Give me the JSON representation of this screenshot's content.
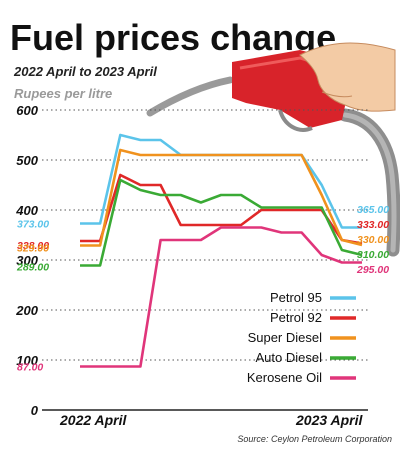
{
  "chart_data": {
    "type": "line",
    "title": "Fuel prices change",
    "subtitle": "2022 April to 2023 April",
    "ylabel": "Rupees per litre",
    "ylim": [
      0,
      600
    ],
    "yticks": [
      "0",
      "100",
      "200",
      "300",
      "400",
      "500",
      "600"
    ],
    "xaxis_labels": [
      "2022 April",
      "2023 April"
    ],
    "source": "Source: Ceylon Petroleum Corporation",
    "grid": "dotted horizontal",
    "legend_position": "right-middle",
    "series": [
      {
        "name": "Petrol 95",
        "color": "#5bc4ea",
        "start_label": "373.00",
        "end_label": "365.00",
        "values": [
          373,
          373,
          550,
          540,
          540,
          510,
          510,
          510,
          510,
          510,
          510,
          510,
          450,
          365,
          365
        ]
      },
      {
        "name": "Petrol 92",
        "color": "#e02828",
        "start_label": "338.00",
        "end_label": "333.00",
        "values": [
          338,
          338,
          470,
          450,
          450,
          370,
          370,
          370,
          370,
          400,
          400,
          400,
          400,
          340,
          333
        ]
      },
      {
        "name": "Super Diesel",
        "color": "#f0921e",
        "start_label": "329.00",
        "end_label": "330.00",
        "values": [
          329,
          329,
          520,
          510,
          510,
          510,
          510,
          510,
          510,
          510,
          510,
          510,
          430,
          340,
          330
        ]
      },
      {
        "name": "Auto Diesel",
        "color": "#3aaa35",
        "start_label": "289.00",
        "end_label": "310.00",
        "values": [
          289,
          289,
          460,
          440,
          430,
          430,
          415,
          430,
          430,
          405,
          405,
          405,
          405,
          320,
          310
        ]
      },
      {
        "name": "Kerosene Oil",
        "color": "#e0357a",
        "start_label": "87.00",
        "end_label": "295.00",
        "values": [
          87,
          87,
          87,
          87,
          340,
          340,
          340,
          365,
          365,
          365,
          355,
          355,
          310,
          295,
          295
        ]
      }
    ]
  }
}
